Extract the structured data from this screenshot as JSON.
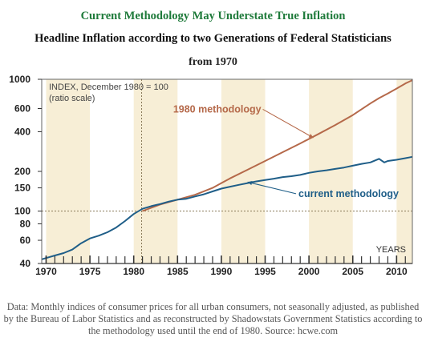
{
  "header": {
    "title": "Current Methodology May Understate True Inflation",
    "subtitle": "Headline Inflation according to two Generations of Federal Statisticians",
    "period": "from 1970"
  },
  "caption": "Data: Monthly indices of consumer prices for all urban consumers, not seasonally adjusted, as published by the Bureau of Labor Statistics and as reconstructed by Shadowstats Government Statistics according to the methodology used until the end of 1980. Source: hcwe.com",
  "colors": {
    "band": "#f7eed6",
    "plot_background": "#ffffff",
    "methodology_1980": "#b5694a",
    "current_methodology": "#1f5e88",
    "axis": "#333333",
    "ref_line": "#8a7a5a"
  },
  "chart_data": {
    "type": "line",
    "index_note_line1": "INDEX, December 1980 = 100",
    "index_note_line2": "(ratio scale)",
    "xlabel": "YEARS",
    "yscale": "log",
    "xlim": [
      1969.5,
      2011.8
    ],
    "ylim": [
      40,
      1000
    ],
    "yticks": [
      1000,
      600,
      400,
      200,
      150,
      100,
      80,
      60,
      40
    ],
    "xticks": [
      1970,
      1975,
      1980,
      1985,
      1990,
      1995,
      2000,
      2005,
      2010
    ],
    "ytick_labels": [
      "1000",
      "600",
      "400",
      "200",
      "150",
      "100",
      "80",
      "60",
      "40"
    ],
    "xtick_labels": [
      "1970",
      "1975",
      "1980",
      "1985",
      "1990",
      "1995",
      "2000",
      "2005",
      "2010"
    ],
    "reference_year": 1980.9,
    "reference_value": 100,
    "annotations": [
      {
        "text": "1980 methodology",
        "x": 1984.5,
        "y": 560,
        "arrow_to_x": 2000.5,
        "arrow_to_y": 360
      },
      {
        "text": "current methodology",
        "x": 1998.8,
        "y": 128,
        "arrow_to_x": 1993,
        "arrow_to_y": 166
      }
    ],
    "series": [
      {
        "name": "1980 methodology",
        "x": [
          1981,
          1983,
          1985,
          1987,
          1989,
          1990,
          1991,
          1993,
          1995,
          1997,
          1999,
          2001,
          2003,
          2005,
          2007,
          2008,
          2009,
          2010,
          2011,
          2011.8
        ],
        "values": [
          100,
          112,
          122,
          133,
          150,
          163,
          177,
          206,
          240,
          280,
          326,
          382,
          450,
          535,
          655,
          720,
          780,
          850,
          930,
          985
        ]
      },
      {
        "name": "current methodology",
        "x": [
          1969.5,
          1970,
          1971,
          1972,
          1973,
          1974,
          1975,
          1976,
          1977,
          1978,
          1979,
          1980,
          1981,
          1982,
          1983,
          1984,
          1985,
          1986,
          1987,
          1988,
          1989,
          1990,
          1991,
          1992,
          1993,
          1994,
          1995,
          1996,
          1997,
          1998,
          1999,
          2000,
          2001,
          2002,
          2003,
          2004,
          2005,
          2006,
          2007,
          2008,
          2008.6,
          2009,
          2010,
          2011,
          2011.8
        ],
        "values": [
          43,
          44,
          46,
          48,
          51,
          57,
          62,
          65,
          69,
          75,
          84,
          95,
          104,
          109,
          113,
          118,
          122,
          124,
          129,
          134,
          141,
          148,
          153,
          158,
          163,
          168,
          172,
          176,
          181,
          184,
          188,
          195,
          200,
          204,
          209,
          214,
          221,
          228,
          234,
          249,
          234,
          240,
          245,
          252,
          258
        ]
      }
    ]
  }
}
